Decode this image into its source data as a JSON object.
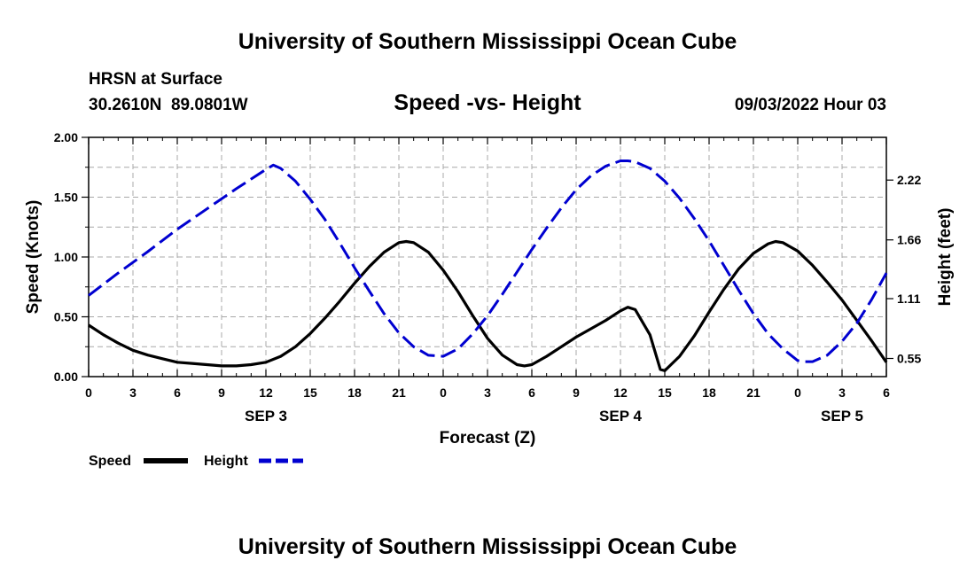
{
  "title": "University of Southern Mississippi Ocean Cube",
  "footer_title": "University of Southern Mississippi Ocean Cube",
  "station": "HRSN at Surface",
  "coords": "30.2610N  89.0801W",
  "subtitle": "Speed -vs- Height",
  "date_label": "09/03/2022 Hour 03",
  "chart_data": {
    "type": "line",
    "xlabel": "Forecast (Z)",
    "x_range": [
      0,
      54
    ],
    "x_ticks": [
      {
        "x": 0,
        "label": "0"
      },
      {
        "x": 3,
        "label": "3"
      },
      {
        "x": 6,
        "label": "6"
      },
      {
        "x": 9,
        "label": "9"
      },
      {
        "x": 12,
        "label": "12"
      },
      {
        "x": 15,
        "label": "15"
      },
      {
        "x": 18,
        "label": "18"
      },
      {
        "x": 21,
        "label": "21"
      },
      {
        "x": 24,
        "label": "0"
      },
      {
        "x": 27,
        "label": "3"
      },
      {
        "x": 30,
        "label": "6"
      },
      {
        "x": 33,
        "label": "9"
      },
      {
        "x": 36,
        "label": "12"
      },
      {
        "x": 39,
        "label": "15"
      },
      {
        "x": 42,
        "label": "18"
      },
      {
        "x": 45,
        "label": "21"
      },
      {
        "x": 48,
        "label": "0"
      },
      {
        "x": 51,
        "label": "3"
      },
      {
        "x": 54,
        "label": "6"
      }
    ],
    "date_labels": [
      {
        "x": 12,
        "label": "SEP 3"
      },
      {
        "x": 36,
        "label": "SEP 4"
      },
      {
        "x": 51,
        "label": "SEP 5"
      }
    ],
    "left_axis": {
      "label": "Speed (Knots)",
      "range": [
        0,
        2.0
      ],
      "ticks": [
        {
          "v": 0,
          "label": "0.00"
        },
        {
          "v": 0.5,
          "label": "0.50"
        },
        {
          "v": 1.0,
          "label": "1.00"
        },
        {
          "v": 1.5,
          "label": "1.50"
        },
        {
          "v": 2.0,
          "label": "2.00"
        }
      ]
    },
    "right_axis": {
      "label": "Height (feet)",
      "range": [
        0.38,
        2.62
      ],
      "ticks": [
        {
          "v": 0.55,
          "label": "0.55"
        },
        {
          "v": 1.11,
          "label": "1.11"
        },
        {
          "v": 1.66,
          "label": "1.66"
        },
        {
          "v": 2.22,
          "label": "2.22"
        }
      ]
    },
    "series": [
      {
        "name": "Speed",
        "axis": "left",
        "color": "#000000",
        "style": "solid",
        "x": [
          0,
          1,
          2,
          3,
          4,
          5,
          6,
          7,
          8,
          9,
          10,
          11,
          12,
          13,
          14,
          15,
          16,
          17,
          18,
          19,
          20,
          21,
          21.5,
          22,
          23,
          24,
          25,
          26,
          27,
          28,
          29,
          29.5,
          30,
          31,
          32,
          33,
          34,
          35,
          36,
          36.5,
          37,
          38,
          38.7,
          39,
          40,
          41,
          42,
          43,
          44,
          45,
          46,
          46.5,
          47,
          48,
          49,
          50,
          51,
          52,
          53,
          54
        ],
        "values": [
          0.43,
          0.35,
          0.28,
          0.22,
          0.18,
          0.15,
          0.12,
          0.11,
          0.1,
          0.09,
          0.09,
          0.1,
          0.12,
          0.17,
          0.25,
          0.36,
          0.49,
          0.63,
          0.78,
          0.92,
          1.04,
          1.12,
          1.13,
          1.12,
          1.04,
          0.89,
          0.71,
          0.51,
          0.32,
          0.18,
          0.1,
          0.09,
          0.1,
          0.17,
          0.25,
          0.33,
          0.4,
          0.47,
          0.55,
          0.58,
          0.56,
          0.35,
          0.06,
          0.05,
          0.17,
          0.34,
          0.54,
          0.73,
          0.9,
          1.03,
          1.11,
          1.13,
          1.12,
          1.05,
          0.93,
          0.79,
          0.64,
          0.47,
          0.3,
          0.12
        ]
      },
      {
        "name": "Height",
        "axis": "right",
        "color": "#0000d0",
        "style": "dashed",
        "x": [
          0,
          2,
          4,
          6,
          8,
          10,
          12,
          12.5,
          13,
          14,
          15,
          16,
          17,
          18,
          19,
          20,
          21,
          22,
          23,
          24,
          25,
          26,
          27,
          28,
          29,
          30,
          31,
          32,
          33,
          34,
          35,
          36,
          36.5,
          37,
          38,
          39,
          40,
          41,
          42,
          43,
          44,
          45,
          46,
          47,
          48,
          48.5,
          49,
          50,
          51,
          52,
          53,
          54
        ],
        "values": [
          1.14,
          1.35,
          1.55,
          1.76,
          1.95,
          2.14,
          2.32,
          2.36,
          2.33,
          2.21,
          2.04,
          1.85,
          1.63,
          1.4,
          1.18,
          0.97,
          0.79,
          0.66,
          0.58,
          0.57,
          0.64,
          0.78,
          0.95,
          1.15,
          1.36,
          1.57,
          1.77,
          1.96,
          2.13,
          2.26,
          2.35,
          2.4,
          2.4,
          2.39,
          2.33,
          2.21,
          2.05,
          1.86,
          1.65,
          1.42,
          1.19,
          0.97,
          0.78,
          0.64,
          0.53,
          0.52,
          0.52,
          0.58,
          0.71,
          0.88,
          1.1,
          1.35
        ]
      }
    ],
    "legend": [
      {
        "label": "Speed",
        "color": "#000000",
        "style": "solid"
      },
      {
        "label": "Height",
        "color": "#0000d0",
        "style": "dashed"
      }
    ],
    "grid": true
  }
}
